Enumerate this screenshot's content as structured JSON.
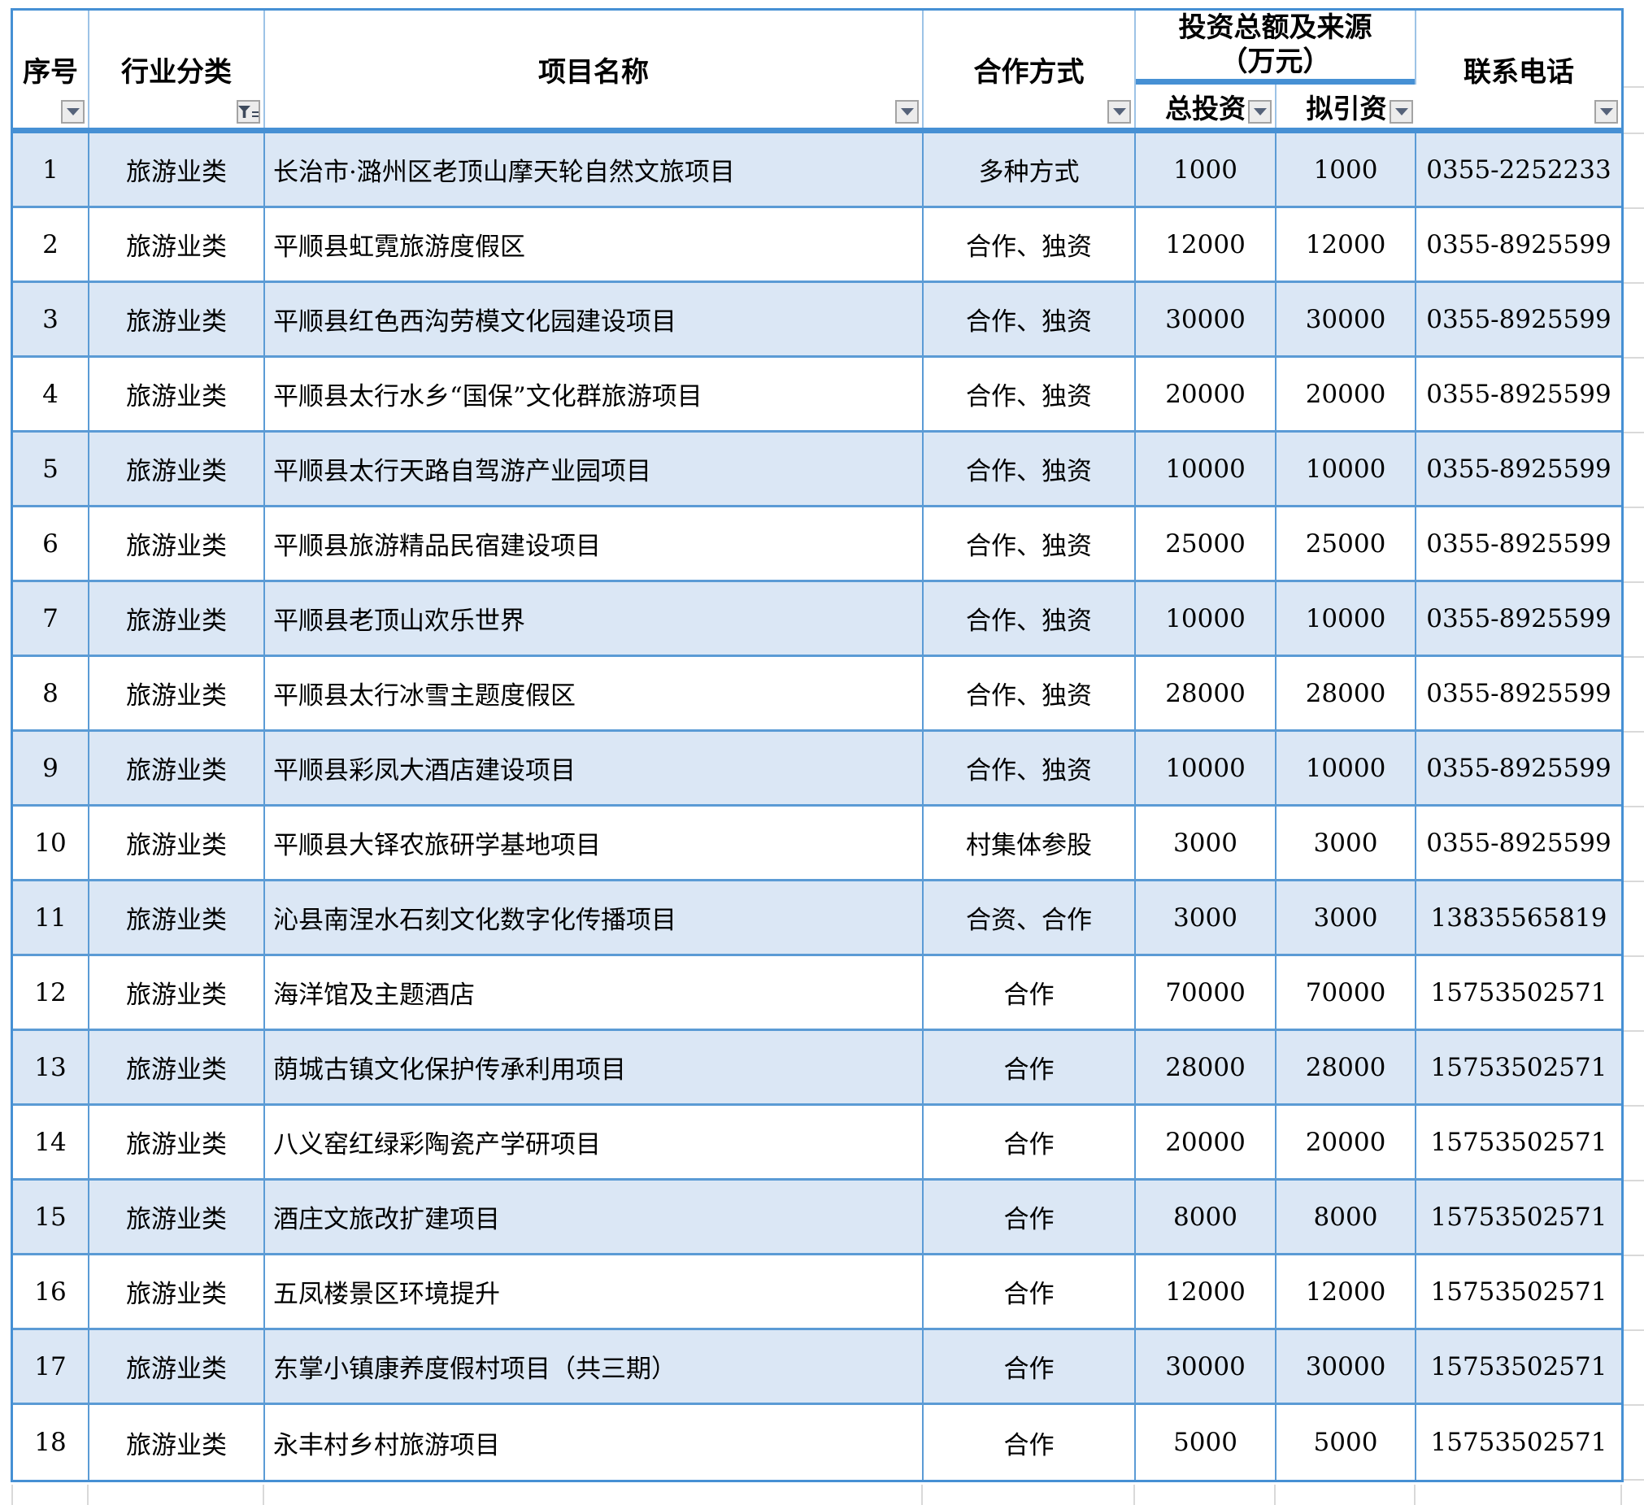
{
  "table": {
    "investment_group": {
      "line1": "投资总额及来源",
      "line2": "（万元）"
    },
    "columns": [
      {
        "key": "seq",
        "label": "序号",
        "filter": "dropdown"
      },
      {
        "key": "industry",
        "label": "行业分类",
        "filter": "active-filter"
      },
      {
        "key": "project",
        "label": "项目名称",
        "filter": "dropdown"
      },
      {
        "key": "method",
        "label": "合作方式",
        "filter": "dropdown"
      },
      {
        "key": "total",
        "label": "总投资",
        "filter": "dropdown"
      },
      {
        "key": "proposed",
        "label": "拟引资",
        "filter": "dropdown"
      },
      {
        "key": "phone",
        "label": "联系电话",
        "filter": "dropdown"
      }
    ],
    "rows": [
      {
        "seq": "1",
        "industry": "旅游业类",
        "project": "长治市·潞州区老顶山摩天轮自然文旅项目",
        "method": "多种方式",
        "total": "1000",
        "proposed": "1000",
        "phone": "0355-2252233"
      },
      {
        "seq": "2",
        "industry": "旅游业类",
        "project": "平顺县虹霓旅游度假区",
        "method": "合作、独资",
        "total": "12000",
        "proposed": "12000",
        "phone": "0355-8925599"
      },
      {
        "seq": "3",
        "industry": "旅游业类",
        "project": "平顺县红色西沟劳模文化园建设项目",
        "method": "合作、独资",
        "total": "30000",
        "proposed": "30000",
        "phone": "0355-8925599"
      },
      {
        "seq": "4",
        "industry": "旅游业类",
        "project": "平顺县太行水乡“国保”文化群旅游项目",
        "method": "合作、独资",
        "total": "20000",
        "proposed": "20000",
        "phone": "0355-8925599"
      },
      {
        "seq": "5",
        "industry": "旅游业类",
        "project": "平顺县太行天路自驾游产业园项目",
        "method": "合作、独资",
        "total": "10000",
        "proposed": "10000",
        "phone": "0355-8925599"
      },
      {
        "seq": "6",
        "industry": "旅游业类",
        "project": "平顺县旅游精品民宿建设项目",
        "method": "合作、独资",
        "total": "25000",
        "proposed": "25000",
        "phone": "0355-8925599"
      },
      {
        "seq": "7",
        "industry": "旅游业类",
        "project": "平顺县老顶山欢乐世界",
        "method": "合作、独资",
        "total": "10000",
        "proposed": "10000",
        "phone": "0355-8925599"
      },
      {
        "seq": "8",
        "industry": "旅游业类",
        "project": "平顺县太行冰雪主题度假区",
        "method": "合作、独资",
        "total": "28000",
        "proposed": "28000",
        "phone": "0355-8925599"
      },
      {
        "seq": "9",
        "industry": "旅游业类",
        "project": "平顺县彩凤大酒店建设项目",
        "method": "合作、独资",
        "total": "10000",
        "proposed": "10000",
        "phone": "0355-8925599"
      },
      {
        "seq": "10",
        "industry": "旅游业类",
        "project": "平顺县大铎农旅研学基地项目",
        "method": "村集体参股",
        "total": "3000",
        "proposed": "3000",
        "phone": "0355-8925599"
      },
      {
        "seq": "11",
        "industry": "旅游业类",
        "project": "沁县南涅水石刻文化数字化传播项目",
        "method": "合资、合作",
        "total": "3000",
        "proposed": "3000",
        "phone": "13835565819"
      },
      {
        "seq": "12",
        "industry": "旅游业类",
        "project": "海洋馆及主题酒店",
        "method": "合作",
        "total": "70000",
        "proposed": "70000",
        "phone": "15753502571"
      },
      {
        "seq": "13",
        "industry": "旅游业类",
        "project": "荫城古镇文化保护传承利用项目",
        "method": "合作",
        "total": "28000",
        "proposed": "28000",
        "phone": "15753502571"
      },
      {
        "seq": "14",
        "industry": "旅游业类",
        "project": "八义窑红绿彩陶瓷产学研项目",
        "method": "合作",
        "total": "20000",
        "proposed": "20000",
        "phone": "15753502571"
      },
      {
        "seq": "15",
        "industry": "旅游业类",
        "project": "酒庄文旅改扩建项目",
        "method": "合作",
        "total": "8000",
        "proposed": "8000",
        "phone": "15753502571"
      },
      {
        "seq": "16",
        "industry": "旅游业类",
        "project": "五凤楼景区环境提升",
        "method": "合作",
        "total": "12000",
        "proposed": "12000",
        "phone": "15753502571"
      },
      {
        "seq": "17",
        "industry": "旅游业类",
        "project": "东掌小镇康养度假村项目（共三期）",
        "method": "合作",
        "total": "30000",
        "proposed": "30000",
        "phone": "15753502571"
      },
      {
        "seq": "18",
        "industry": "旅游业类",
        "project": "永丰村乡村旅游项目",
        "method": "合作",
        "total": "5000",
        "proposed": "5000",
        "phone": "15753502571"
      }
    ]
  },
  "icons": {
    "filter_dropdown": "dropdown-arrow",
    "filter_active": "funnel-with-equals"
  },
  "colors": {
    "border_blue": "#5b9bd5",
    "thick_border_blue": "#4690d4",
    "header_divider_blue": "#9dc3e6",
    "band_blue": "#dbe7f5",
    "filter_button_bg": "#ececec",
    "filter_button_border": "#a3a3a3",
    "filter_glyph": "#3e4a5c",
    "margin_gridline_gray": "#d9d9d9",
    "text": "#000000"
  }
}
